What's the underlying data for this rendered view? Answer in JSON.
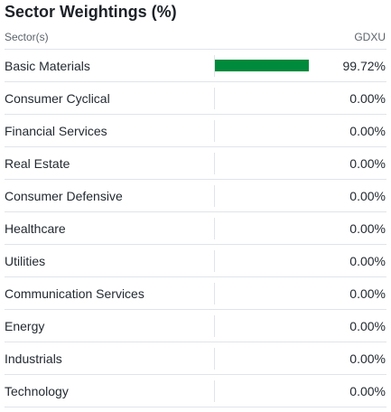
{
  "title": "Sector Weightings (%)",
  "header": {
    "sector_label": "Sector(s)",
    "ticker": "GDXU"
  },
  "colors": {
    "bar": "#008a3c"
  },
  "rows": [
    {
      "label": "Basic Materials",
      "value": "99.72%",
      "weight": 99.72
    },
    {
      "label": "Consumer Cyclical",
      "value": "0.00%",
      "weight": 0
    },
    {
      "label": "Financial Services",
      "value": "0.00%",
      "weight": 0
    },
    {
      "label": "Real Estate",
      "value": "0.00%",
      "weight": 0
    },
    {
      "label": "Consumer Defensive",
      "value": "0.00%",
      "weight": 0
    },
    {
      "label": "Healthcare",
      "value": "0.00%",
      "weight": 0
    },
    {
      "label": "Utilities",
      "value": "0.00%",
      "weight": 0
    },
    {
      "label": "Communication Services",
      "value": "0.00%",
      "weight": 0
    },
    {
      "label": "Energy",
      "value": "0.00%",
      "weight": 0
    },
    {
      "label": "Industrials",
      "value": "0.00%",
      "weight": 0
    },
    {
      "label": "Technology",
      "value": "0.00%",
      "weight": 0
    }
  ]
}
